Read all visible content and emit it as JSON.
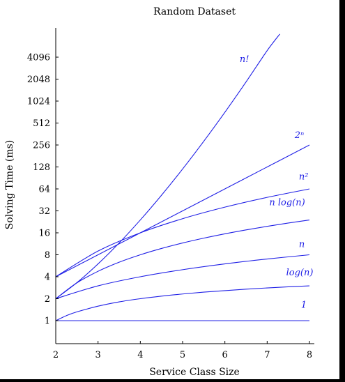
{
  "chart_data": {
    "type": "line",
    "title": "Random Dataset",
    "xlabel": "Service Class Size",
    "ylabel": "Solving Time (ms)",
    "y_scale": "log2",
    "xlim": [
      2,
      8
    ],
    "ylim": [
      0.5,
      10000
    ],
    "x_ticks": [
      "2",
      "3",
      "4",
      "5",
      "6",
      "7",
      "8"
    ],
    "y_ticks": [
      "1",
      "2",
      "4",
      "8",
      "16",
      "32",
      "64",
      "128",
      "256",
      "512",
      "1024",
      "2048",
      "4096"
    ],
    "line_color": "#1f1fe6",
    "series": [
      {
        "name": "1",
        "label": "1",
        "label_x": 7.8,
        "label_y": 1.5,
        "x": [
          2,
          3,
          4,
          5,
          6,
          7,
          8
        ],
        "y": [
          1,
          1,
          1,
          1,
          1,
          1,
          1
        ]
      },
      {
        "name": "log(n)",
        "label": "log(n)",
        "label_x": 7.45,
        "label_y": 4.2,
        "x": [
          2,
          2.25,
          2.5,
          3,
          3.5,
          4,
          4.5,
          5,
          5.5,
          6,
          6.5,
          7,
          7.5,
          8
        ],
        "y": [
          1,
          1.17,
          1.32,
          1.58,
          1.81,
          2,
          2.17,
          2.32,
          2.46,
          2.58,
          2.7,
          2.81,
          2.91,
          3
        ]
      },
      {
        "name": "n",
        "label": "n",
        "label_x": 7.75,
        "label_y": 10.2,
        "x": [
          2,
          3,
          4,
          5,
          6,
          7,
          8
        ],
        "y": [
          2,
          3,
          4,
          5,
          6,
          7,
          8
        ]
      },
      {
        "name": "n log(n)",
        "label": "n log(n)",
        "label_x": 7.05,
        "label_y": 38,
        "x": [
          2,
          2.5,
          3,
          3.5,
          4,
          4.5,
          5,
          5.5,
          6,
          6.5,
          7,
          7.5,
          8
        ],
        "y": [
          2,
          3.3,
          4.75,
          6.33,
          8,
          9.76,
          11.61,
          13.53,
          15.51,
          17.55,
          19.65,
          21.8,
          24
        ]
      },
      {
        "name": "n^2",
        "label": "n²",
        "label_x": 7.75,
        "label_y": 86,
        "x": [
          2,
          3,
          4,
          5,
          6,
          7,
          8
        ],
        "y": [
          4,
          9,
          16,
          25,
          36,
          49,
          64
        ]
      },
      {
        "name": "2^n",
        "label": "2ⁿ",
        "label_x": 7.65,
        "label_y": 320,
        "x": [
          2,
          3,
          4,
          5,
          6,
          7,
          8
        ],
        "y": [
          4,
          8,
          16,
          32,
          64,
          128,
          256
        ]
      },
      {
        "name": "n!",
        "label": "n!",
        "label_x": 6.35,
        "label_y": 3500,
        "x": [
          2,
          2.5,
          3,
          3.5,
          4,
          4.5,
          5,
          5.5,
          6,
          6.5,
          7,
          7.3
        ],
        "y": [
          2,
          3.32,
          6,
          11.63,
          24,
          52.34,
          120,
          287.9,
          720,
          1871,
          5040,
          8500
        ]
      }
    ]
  }
}
